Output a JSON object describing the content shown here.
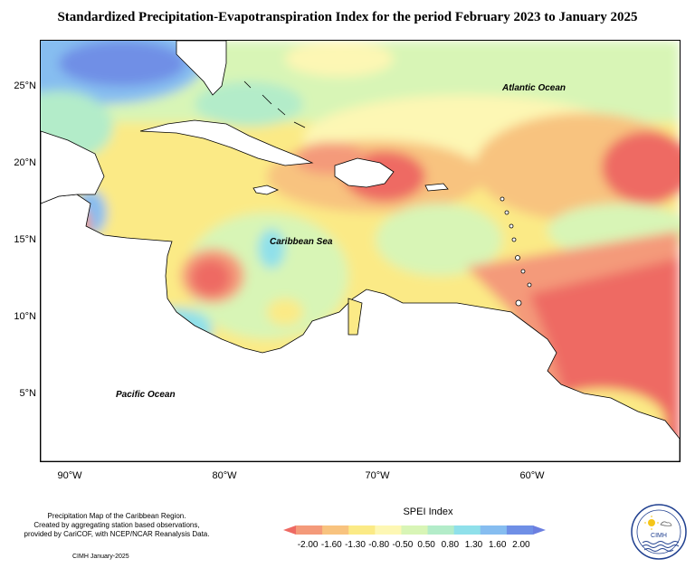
{
  "title": "Standardized Precipitation-Evapotranspiration Index for the period February 2023 to January 2025",
  "map": {
    "lat_ticks": [
      "25°N",
      "20°N",
      "15°N",
      "10°N",
      "5°N"
    ],
    "lon_ticks": [
      "90°W",
      "80°W",
      "70°W",
      "60°W"
    ],
    "labels": {
      "atlantic": "Atlantic Ocean",
      "caribbean": "Caribbean Sea",
      "pacific": "Pacific Ocean"
    }
  },
  "footnote": {
    "line1": "Precipitation Map of the Caribbean Region.",
    "line2": "Created by aggregating station based observations,",
    "line3": "provided by CariCOF, with NCEP/NCAR Reanalysis Data."
  },
  "credit": "CIMH January-2025",
  "legend": {
    "title": "SPEI Index",
    "ticks": [
      "-2.00",
      "-1.60",
      "-1.30",
      "-0.80",
      "-0.50",
      "0.50",
      "0.80",
      "1.30",
      "1.60",
      "2.00"
    ],
    "colors": [
      "#ee6a63",
      "#f49a7a",
      "#f8c37f",
      "#fbea86",
      "#fdf7b4",
      "#d8f5b6",
      "#b3ecc9",
      "#8fe0ea",
      "#86bdf0",
      "#6f8fe6",
      "#6b7fe0"
    ]
  },
  "logo_text": "CIMH"
}
